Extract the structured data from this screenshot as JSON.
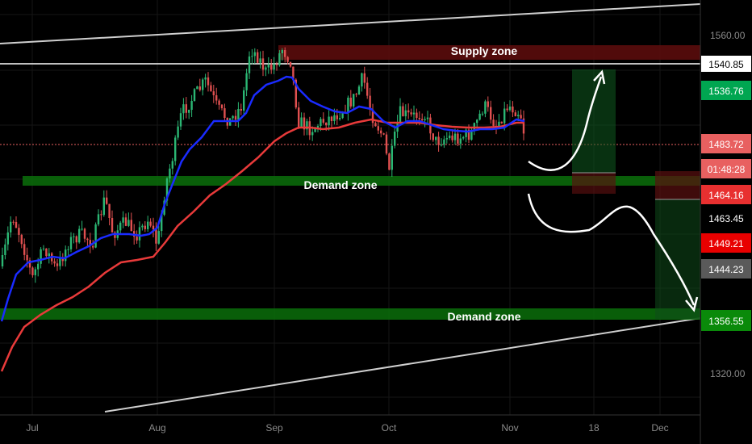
{
  "chart_data": {
    "type": "candlestick",
    "x_axis": {
      "tick_labels": [
        "Jul",
        "Aug",
        "Sep",
        "Oct",
        "Nov",
        "18",
        "Dec"
      ]
    },
    "y_axis": {
      "range": [
        1300,
        1580
      ],
      "tick_labels": [
        "1560.00",
        "1320.00"
      ]
    },
    "price_badges": [
      {
        "label": "1540.85",
        "bg": "#ffffff",
        "fg": "#000000"
      },
      {
        "label": "1536.76",
        "bg": "#00a651",
        "fg": "#ffffff"
      },
      {
        "label": "1483.72",
        "bg": "#e86060",
        "fg": "#ffffff"
      },
      {
        "label": "01:48:28",
        "bg": "#e86060",
        "fg": "#ffffff"
      },
      {
        "label": "1464.16",
        "bg": "#e83030",
        "fg": "#ffffff"
      },
      {
        "label": "1463.45",
        "bg": "#000000",
        "fg": "#ffffff"
      },
      {
        "label": "1449.21",
        "bg": "#e80000",
        "fg": "#ffffff"
      },
      {
        "label": "1444.23",
        "bg": "#5a5a5a",
        "fg": "#ffffff"
      },
      {
        "label": "1356.55",
        "bg": "#0a8a0a",
        "fg": "#ffffff"
      }
    ],
    "zones": [
      {
        "name": "Supply zone",
        "price_low": 1540,
        "price_high": 1553
      },
      {
        "name": "Demand zone",
        "price_low": 1469,
        "price_high": 1477
      },
      {
        "name": "Demand zone",
        "price_low": 1356,
        "price_high": 1364
      }
    ],
    "series": [
      {
        "role": "price",
        "color": "#e0e0e0"
      },
      {
        "role": "fast moving average",
        "color": "#1a2bff"
      },
      {
        "role": "slow moving average",
        "color": "#e83a3a"
      }
    ],
    "colors": {
      "background": "#000000",
      "up_candle": "#2bb673",
      "down_candle": "#e05050",
      "supply_zone": "#5a0c0c",
      "demand_zone": "#0b6e0b",
      "channel_line": "#cfcfcf",
      "arrow": "#ffffff"
    },
    "grid": true,
    "legend": "none"
  }
}
